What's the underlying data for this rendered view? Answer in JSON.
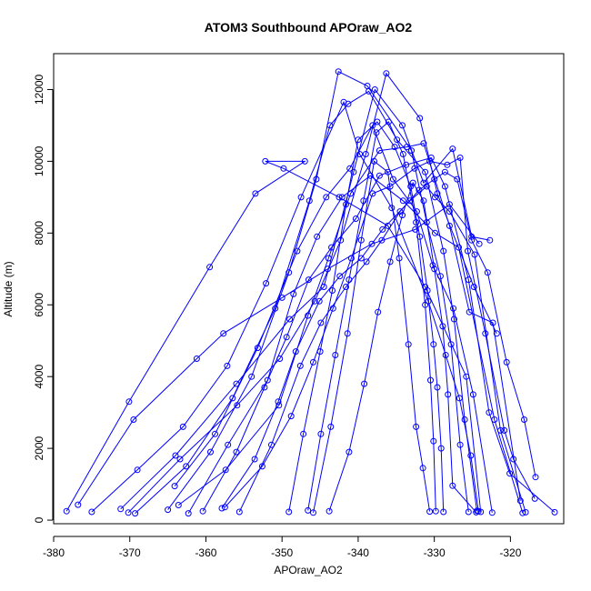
{
  "chart_data": {
    "type": "line",
    "title": "ATOM3 Southbound APOraw_AO2",
    "xlabel": "APOraw_AO2",
    "ylabel": "Altitude (m)",
    "xlim": [
      -380,
      -313
    ],
    "ylim": [
      -100,
      13000
    ],
    "xticks": [
      -380,
      -370,
      -360,
      -350,
      -340,
      -330,
      -320
    ],
    "yticks": [
      0,
      2000,
      4000,
      6000,
      8000,
      10000,
      12000
    ],
    "xtick_labels": [
      "-380",
      "-370",
      "-360",
      "-350",
      "-340",
      "-330",
      "-320"
    ],
    "ytick_labels": [
      "0",
      "2000",
      "4000",
      "6000",
      "8000",
      "10000",
      "12000"
    ],
    "series_color": "#0000ff",
    "marker": "open-circle",
    "grid": false,
    "legend": "none",
    "series": [
      {
        "points": [
          [
            -378.3,
            250
          ],
          [
            -370.1,
            3300
          ],
          [
            -359.5,
            7050
          ],
          [
            -353.5,
            9100
          ],
          [
            -347.0,
            10000
          ],
          [
            -352.2,
            10000
          ],
          [
            -349.8,
            9800
          ],
          [
            -342.5,
            9000
          ],
          [
            -336.1,
            8200
          ],
          [
            -331.2,
            6500
          ],
          [
            -325.8,
            4000
          ],
          [
            -323.9,
            230
          ]
        ]
      },
      {
        "points": [
          [
            -376.8,
            430
          ],
          [
            -369.5,
            2800
          ],
          [
            -361.2,
            4500
          ],
          [
            -357.7,
            5200
          ],
          [
            -350.0,
            6200
          ],
          [
            -344.0,
            7000
          ],
          [
            -338.2,
            7700
          ],
          [
            -332.5,
            8100
          ],
          [
            -328.0,
            8800
          ],
          [
            -324.1,
            7700
          ]
        ]
      },
      {
        "points": [
          [
            -375.0,
            230
          ],
          [
            -369.0,
            1400
          ],
          [
            -363.0,
            2600
          ],
          [
            -357.2,
            4300
          ],
          [
            -352.1,
            6600
          ],
          [
            -347.5,
            9000
          ],
          [
            -341.9,
            11650
          ],
          [
            -339.8,
            10200
          ],
          [
            -335.6,
            8700
          ],
          [
            -330.8,
            6100
          ],
          [
            -328.5,
            4600
          ],
          [
            -326.7,
            3400
          ],
          [
            -325.2,
            1800
          ],
          [
            -324.2,
            250
          ]
        ]
      },
      {
        "points": [
          [
            -371.2,
            310
          ],
          [
            -364.0,
            1800
          ],
          [
            -356.0,
            3800
          ],
          [
            -349.0,
            5600
          ],
          [
            -344.5,
            6500
          ],
          [
            -340.6,
            9700
          ],
          [
            -337.8,
            12000
          ],
          [
            -334.2,
            11000
          ],
          [
            -331.4,
            9400
          ],
          [
            -327.6,
            10350
          ],
          [
            -325.1,
            7900
          ],
          [
            -322.7,
            7800
          ]
        ]
      },
      {
        "points": [
          [
            -370.2,
            210
          ],
          [
            -363.4,
            1700
          ],
          [
            -355.9,
            3200
          ],
          [
            -350.3,
            4500
          ],
          [
            -345.7,
            6100
          ],
          [
            -342.3,
            7800
          ],
          [
            -339.0,
            10200
          ],
          [
            -336.3,
            12450
          ],
          [
            -331.9,
            11200
          ],
          [
            -329.6,
            9100
          ],
          [
            -324.8,
            6500
          ],
          [
            -321.8,
            5200
          ]
        ]
      },
      {
        "points": [
          [
            -369.3,
            190
          ],
          [
            -362.6,
            1500
          ],
          [
            -356.5,
            3400
          ],
          [
            -350.9,
            5900
          ],
          [
            -346.4,
            8900
          ],
          [
            -343.7,
            11000
          ],
          [
            -341.3,
            11600
          ],
          [
            -338.6,
            11950
          ],
          [
            -334.9,
            10600
          ],
          [
            -331.2,
            9700
          ],
          [
            -328.8,
            7500
          ],
          [
            -327.4,
            5600
          ],
          [
            -326.0,
            2800
          ],
          [
            -324.4,
            260
          ]
        ]
      },
      {
        "points": [
          [
            -365.0,
            290
          ],
          [
            -359.4,
            1900
          ],
          [
            -354.0,
            4000
          ],
          [
            -349.1,
            6900
          ],
          [
            -345.5,
            9500
          ],
          [
            -342.6,
            12500
          ],
          [
            -338.8,
            12100
          ],
          [
            -333.0,
            10300
          ],
          [
            -331.0,
            8300
          ],
          [
            -329.2,
            6800
          ],
          [
            -327.8,
            4900
          ],
          [
            -326.6,
            2100
          ],
          [
            -325.5,
            230
          ]
        ]
      },
      {
        "points": [
          [
            -364.1,
            950
          ],
          [
            -358.8,
            2400
          ],
          [
            -353.2,
            4800
          ],
          [
            -348.0,
            7500
          ],
          [
            -344.2,
            9000
          ],
          [
            -341.1,
            9800
          ],
          [
            -338.1,
            11000
          ],
          [
            -335.4,
            9500
          ],
          [
            -332.3,
            8600
          ],
          [
            -330.2,
            7100
          ],
          [
            -327.5,
            5900
          ],
          [
            -324.9,
            3500
          ],
          [
            -322.4,
            210
          ]
        ]
      },
      {
        "points": [
          [
            -363.6,
            420
          ],
          [
            -357.4,
            1400
          ],
          [
            -350.4,
            3200
          ],
          [
            -346.6,
            5700
          ],
          [
            -343.9,
            7300
          ],
          [
            -341.0,
            9100
          ],
          [
            -337.2,
            10300
          ],
          [
            -333.6,
            10400
          ],
          [
            -331.4,
            10500
          ],
          [
            -328.0,
            8200
          ],
          [
            -325.4,
            5800
          ],
          [
            -322.3,
            5500
          ],
          [
            -318.7,
            540
          ]
        ]
      },
      {
        "points": [
          [
            -362.3,
            190
          ],
          [
            -357.1,
            2100
          ],
          [
            -351.9,
            3900
          ],
          [
            -348.5,
            6300
          ],
          [
            -345.4,
            7900
          ],
          [
            -342.1,
            9000
          ],
          [
            -338.4,
            9600
          ],
          [
            -334.1,
            8900
          ],
          [
            -329.9,
            8000
          ],
          [
            -326.8,
            7600
          ],
          [
            -322.1,
            2800
          ],
          [
            -318.4,
            200
          ]
        ]
      },
      {
        "points": [
          [
            -360.4,
            250
          ],
          [
            -356.0,
            1900
          ],
          [
            -352.3,
            3700
          ],
          [
            -349.4,
            5100
          ],
          [
            -346.5,
            6700
          ],
          [
            -343.5,
            7600
          ],
          [
            -340.3,
            8400
          ],
          [
            -337.2,
            9600
          ],
          [
            -333.7,
            9900
          ],
          [
            -330.4,
            10100
          ],
          [
            -328.6,
            9300
          ],
          [
            -325.5,
            6700
          ],
          [
            -322.8,
            3000
          ],
          [
            -320.1,
            1300
          ],
          [
            -314.2,
            220
          ]
        ]
      },
      {
        "points": [
          [
            -357.9,
            330
          ],
          [
            -353.6,
            1700
          ],
          [
            -350.5,
            3300
          ],
          [
            -348.2,
            4700
          ],
          [
            -345.1,
            6100
          ],
          [
            -342.4,
            6800
          ],
          [
            -339.6,
            7300
          ],
          [
            -336.8,
            8100
          ],
          [
            -333.2,
            8900
          ],
          [
            -331.0,
            9300
          ],
          [
            -329.9,
            9000
          ],
          [
            -328.0,
            8600
          ],
          [
            -324.7,
            7400
          ],
          [
            -321.3,
            2500
          ],
          [
            -318.0,
            220
          ]
        ]
      },
      {
        "points": [
          [
            -357.5,
            360
          ],
          [
            -352.6,
            1500
          ],
          [
            -348.8,
            2900
          ],
          [
            -345.9,
            4400
          ],
          [
            -343.3,
            5900
          ],
          [
            -340.9,
            7300
          ],
          [
            -338.1,
            9100
          ],
          [
            -335.8,
            9300
          ],
          [
            -332.6,
            9800
          ],
          [
            -330.6,
            10000
          ],
          [
            -328.3,
            9900
          ],
          [
            -326.6,
            10100
          ],
          [
            -325.6,
            7500
          ],
          [
            -323.3,
            5200
          ],
          [
            -320.8,
            2500
          ],
          [
            -319.6,
            1700
          ],
          [
            -316.8,
            600
          ]
        ]
      },
      {
        "points": [
          [
            -355.6,
            230
          ],
          [
            -351.4,
            2100
          ],
          [
            -347.6,
            4300
          ],
          [
            -344.9,
            5500
          ],
          [
            -341.6,
            6500
          ],
          [
            -338.9,
            7200
          ],
          [
            -336.9,
            7800
          ],
          [
            -334.5,
            8600
          ],
          [
            -332.0,
            9200
          ],
          [
            -330.0,
            9500
          ],
          [
            -328.6,
            9700
          ],
          [
            -327.0,
            9500
          ],
          [
            -325.1,
            7800
          ],
          [
            -323.0,
            6900
          ],
          [
            -320.5,
            4400
          ],
          [
            -318.2,
            2800
          ],
          [
            -316.7,
            1200
          ]
        ]
      },
      {
        "points": [
          [
            -349.1,
            230
          ],
          [
            -347.2,
            2400
          ],
          [
            -345.0,
            4700
          ],
          [
            -343.4,
            6400
          ],
          [
            -341.6,
            8800
          ],
          [
            -340.0,
            10600
          ],
          [
            -337.5,
            11100
          ],
          [
            -335.2,
            10400
          ],
          [
            -333.1,
            9300
          ],
          [
            -331.9,
            7900
          ],
          [
            -330.9,
            6400
          ],
          [
            -330.1,
            4900
          ],
          [
            -329.6,
            3700
          ],
          [
            -329.1,
            2000
          ],
          [
            -328.8,
            230
          ]
        ]
      },
      {
        "points": [
          [
            -346.6,
            270
          ],
          [
            -344.9,
            2400
          ],
          [
            -343.0,
            4600
          ],
          [
            -341.2,
            6700
          ],
          [
            -339.3,
            8900
          ],
          [
            -337.6,
            10800
          ],
          [
            -336.0,
            11100
          ],
          [
            -334.1,
            10200
          ],
          [
            -332.4,
            8300
          ],
          [
            -331.2,
            6000
          ],
          [
            -330.5,
            3900
          ],
          [
            -330.1,
            2200
          ],
          [
            -329.8,
            250
          ]
        ]
      },
      {
        "points": [
          [
            -345.9,
            210
          ],
          [
            -343.6,
            2600
          ],
          [
            -341.4,
            5200
          ],
          [
            -339.6,
            7800
          ],
          [
            -337.9,
            10000
          ],
          [
            -336.1,
            9700
          ],
          [
            -334.6,
            7300
          ],
          [
            -333.4,
            4900
          ],
          [
            -332.4,
            2600
          ],
          [
            -331.5,
            1450
          ],
          [
            -330.6,
            240
          ]
        ]
      },
      {
        "points": [
          [
            -343.8,
            250
          ],
          [
            -341.2,
            1900
          ],
          [
            -339.2,
            3800
          ],
          [
            -337.4,
            5800
          ],
          [
            -335.8,
            7200
          ],
          [
            -334.2,
            8500
          ],
          [
            -332.8,
            9400
          ],
          [
            -331.4,
            8900
          ],
          [
            -330.0,
            7000
          ],
          [
            -328.9,
            5400
          ],
          [
            -328.2,
            3500
          ],
          [
            -327.6,
            960
          ],
          [
            -324.5,
            220
          ]
        ]
      }
    ]
  }
}
